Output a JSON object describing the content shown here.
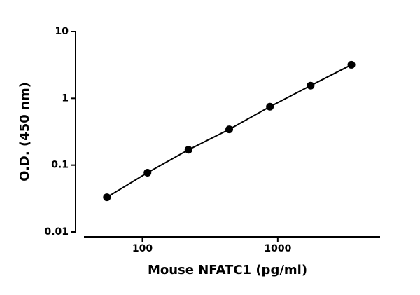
{
  "chart_data": {
    "type": "scatter",
    "xlabel": "Mouse NFATC1 (pg/ml)",
    "ylabel": "O.D. (450 nm)",
    "xscale": "log",
    "yscale": "log",
    "xlim": [
      37,
      5700
    ],
    "ylim": [
      0.01,
      10
    ],
    "xticks": [
      100,
      1000
    ],
    "yticks": [
      0.01,
      0.1,
      1,
      10
    ],
    "grid": false,
    "series": [
      {
        "color": "#000000",
        "x": [
          54.7,
          109,
          219,
          438,
          875,
          1750,
          3500
        ],
        "values": [
          0.033,
          0.077,
          0.17,
          0.343,
          0.75,
          1.55,
          3.18
        ]
      }
    ]
  }
}
